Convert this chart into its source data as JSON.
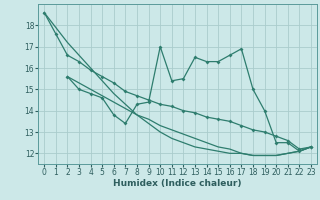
{
  "xlabel": "Humidex (Indice chaleur)",
  "background_color": "#cce8e8",
  "grid_color": "#aacccc",
  "line_color": "#2e7d6e",
  "spine_color": "#5a9a9a",
  "tick_color": "#2e5e5e",
  "xlim": [
    -0.5,
    23.5
  ],
  "ylim": [
    11.5,
    19.0
  ],
  "yticks": [
    12,
    13,
    14,
    15,
    16,
    17,
    18
  ],
  "xticks": [
    0,
    1,
    2,
    3,
    4,
    5,
    6,
    7,
    8,
    9,
    10,
    11,
    12,
    13,
    14,
    15,
    16,
    17,
    18,
    19,
    20,
    21,
    22,
    23
  ],
  "s1_x": [
    0,
    1,
    2,
    3,
    4,
    5,
    6,
    7,
    8,
    9,
    10,
    11,
    12,
    13,
    14,
    15,
    16,
    17,
    18,
    19,
    20,
    21,
    22,
    23
  ],
  "s1_y": [
    18.6,
    17.6,
    16.6,
    16.3,
    15.9,
    15.6,
    15.3,
    14.9,
    14.7,
    14.5,
    14.3,
    14.2,
    14.0,
    13.9,
    13.7,
    13.6,
    13.5,
    13.3,
    13.1,
    13.0,
    12.8,
    12.6,
    12.2,
    12.3
  ],
  "s2_x": [
    2,
    3,
    4,
    5,
    6,
    7,
    8,
    9,
    10,
    11,
    12,
    13,
    14,
    15,
    16,
    17,
    18,
    19,
    20,
    21,
    22,
    23
  ],
  "s2_y": [
    15.6,
    15.0,
    14.8,
    14.6,
    13.8,
    13.4,
    14.3,
    14.4,
    17.0,
    15.4,
    15.5,
    16.5,
    16.3,
    16.3,
    16.6,
    16.9,
    15.0,
    14.0,
    12.5,
    12.5,
    12.1,
    12.3
  ],
  "s3_x": [
    0,
    1,
    2,
    3,
    4,
    5,
    6,
    7,
    8,
    9,
    10,
    11,
    12,
    13,
    14,
    15,
    16,
    17,
    18,
    19,
    20,
    21,
    22,
    23
  ],
  "s3_y": [
    18.6,
    17.9,
    17.2,
    16.6,
    16.0,
    15.4,
    14.8,
    14.3,
    13.8,
    13.4,
    13.0,
    12.7,
    12.5,
    12.3,
    12.2,
    12.1,
    12.0,
    12.0,
    11.9,
    11.9,
    11.9,
    12.0,
    12.1,
    12.3
  ],
  "s4_x": [
    2,
    3,
    4,
    5,
    6,
    7,
    8,
    9,
    10,
    11,
    12,
    13,
    14,
    15,
    16,
    17,
    18,
    19,
    20,
    21,
    22,
    23
  ],
  "s4_y": [
    15.6,
    15.3,
    15.0,
    14.7,
    14.4,
    14.1,
    13.8,
    13.6,
    13.3,
    13.1,
    12.9,
    12.7,
    12.5,
    12.3,
    12.2,
    12.0,
    11.9,
    11.9,
    11.9,
    12.0,
    12.1,
    12.3
  ]
}
